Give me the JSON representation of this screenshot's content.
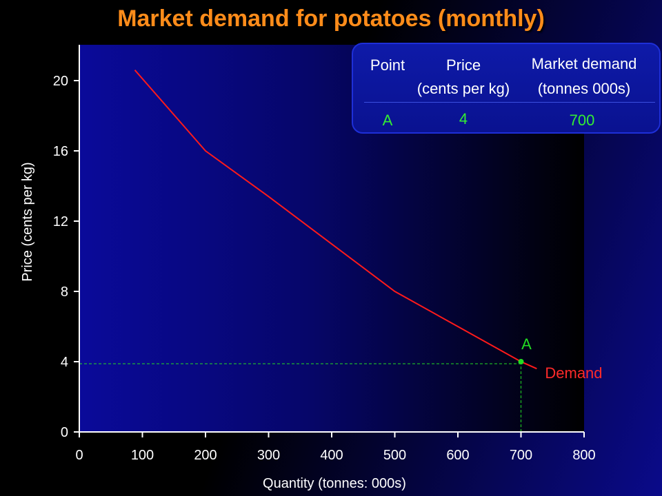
{
  "colors": {
    "curve": "#ff1a1a",
    "point": "#22dd22",
    "guide": "#22dd22",
    "axis": "#ffffff",
    "title": "#ff8c1a",
    "demand_label": "#ff2a2a",
    "table_value": "#33ee33"
  },
  "table": {
    "headers": {
      "point": "Point",
      "price_line1": "Price",
      "price_line2": "(cents per kg)",
      "demand_line1": "Market demand",
      "demand_line2": "(tonnes 000s)"
    },
    "row": {
      "point": "A",
      "price": "4",
      "demand": "700"
    }
  },
  "chart_data": {
    "type": "line",
    "title": "Market demand for potatoes (monthly)",
    "xlabel": "Quantity (tonnes: 000s)",
    "ylabel": "Price (cents per kg)",
    "xlim": [
      0,
      800
    ],
    "ylim": [
      0,
      22
    ],
    "xticks": [
      0,
      100,
      200,
      300,
      400,
      500,
      600,
      700,
      800
    ],
    "yticks": [
      0,
      4,
      8,
      12,
      16,
      20
    ],
    "grid": false,
    "series": [
      {
        "name": "Demand",
        "x": [
          88,
          200,
          300,
          400,
          500,
          600,
          700,
          725
        ],
        "y": [
          20.6,
          16,
          13.4,
          10.7,
          8,
          6,
          4,
          3.6
        ]
      }
    ],
    "highlight": {
      "label": "A",
      "x": 700,
      "y": 4
    }
  }
}
